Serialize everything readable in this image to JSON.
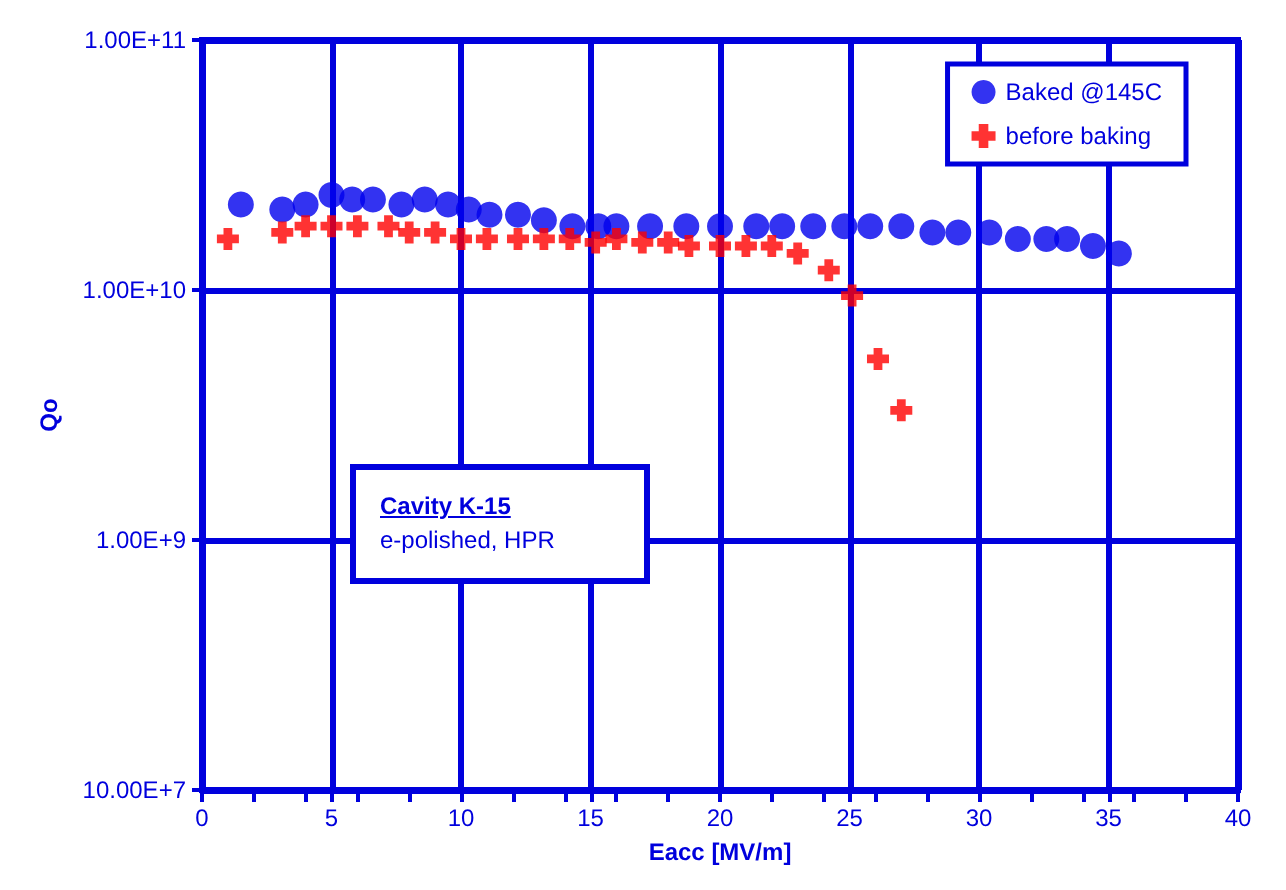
{
  "chart_data": {
    "type": "scatter",
    "xlabel": "Eacc [MV/m]",
    "ylabel": "Qo",
    "annotations": [
      "Cavity K-15",
      "e-polished, HPR"
    ],
    "series": [
      {
        "name": "Baked @145C",
        "color": "#0000ee",
        "marker": "circle",
        "x": [
          1.5,
          3.1,
          4.0,
          5.0,
          5.8,
          6.6,
          7.7,
          8.6,
          9.5,
          10.3,
          11.1,
          12.2,
          13.2,
          14.3,
          15.3,
          16.0,
          17.3,
          18.7,
          20.0,
          21.4,
          22.4,
          23.6,
          24.8,
          25.8,
          27.0,
          28.2,
          29.2,
          30.4,
          31.5,
          32.6,
          33.4,
          34.4,
          35.4
        ],
        "values": [
          22000000000.0,
          21000000000.0,
          22000000000.0,
          24000000000.0,
          23000000000.0,
          23000000000.0,
          22000000000.0,
          23000000000.0,
          22000000000.0,
          21000000000.0,
          20000000000.0,
          20000000000.0,
          19000000000.0,
          18000000000.0,
          18000000000.0,
          18000000000.0,
          18000000000.0,
          18000000000.0,
          18000000000.0,
          18000000000.0,
          18000000000.0,
          18000000000.0,
          18000000000.0,
          18000000000.0,
          18000000000.0,
          17000000000.0,
          17000000000.0,
          17000000000.0,
          16000000000.0,
          16000000000.0,
          16000000000.0,
          15000000000.0,
          14000000000.0
        ]
      },
      {
        "name": "before baking",
        "color": "#ff0000",
        "marker": "cross",
        "x": [
          1.0,
          3.1,
          4.0,
          5.0,
          6.0,
          7.2,
          8.0,
          9.0,
          10.0,
          11.0,
          12.2,
          13.2,
          14.2,
          15.2,
          16.0,
          17.0,
          18.0,
          18.8,
          20.0,
          21.0,
          22.0,
          23.0,
          24.2,
          25.1,
          26.1,
          27.0
        ],
        "values": [
          16000000000.0,
          17000000000.0,
          18000000000.0,
          18000000000.0,
          18000000000.0,
          18000000000.0,
          17000000000.0,
          17000000000.0,
          16000000000.0,
          16000000000.0,
          16000000000.0,
          16000000000.0,
          16000000000.0,
          15500000000.0,
          16000000000.0,
          15500000000.0,
          15500000000.0,
          15000000000.0,
          15000000000.0,
          15000000000.0,
          15000000000.0,
          14000000000.0,
          12000000000.0,
          9500000000.0,
          5300000000.0,
          3300000000.0
        ]
      }
    ],
    "xlim": [
      0,
      40
    ],
    "xticks": [
      0,
      5,
      10,
      15,
      20,
      25,
      30,
      35,
      40
    ],
    "ylim": [
      100000000.0,
      100000000000.0
    ],
    "yticks": [
      {
        "value": 100000000.0,
        "label": "10.00E+7"
      },
      {
        "value": 1000000000.0,
        "label": "1.00E+9"
      },
      {
        "value": 10000000000.0,
        "label": "1.00E+10"
      },
      {
        "value": 100000000000.0,
        "label": "1.00E+11"
      }
    ],
    "log": "y",
    "grid": true,
    "legend": "top right"
  }
}
